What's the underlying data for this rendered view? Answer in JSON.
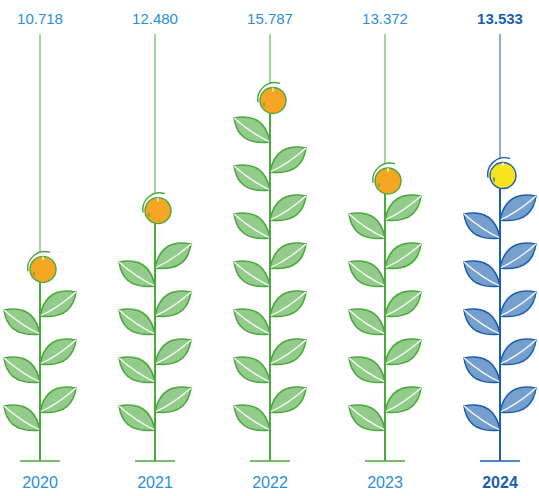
{
  "chart_data": {
    "type": "bar",
    "categories": [
      "2020",
      "2021",
      "2022",
      "2023",
      "2024"
    ],
    "values": [
      10718,
      12480,
      15787,
      13372,
      13533
    ],
    "value_labels": [
      "10.718",
      "12.480",
      "15.787",
      "13.372",
      "13.533"
    ],
    "data_labels": true,
    "colors": [
      "#4aa83c",
      "#4aa83c",
      "#4aa83c",
      "#4aa83c",
      "#1b5fae"
    ],
    "ylim": [
      5000,
      17000
    ],
    "tick_labels": "x"
  }
}
